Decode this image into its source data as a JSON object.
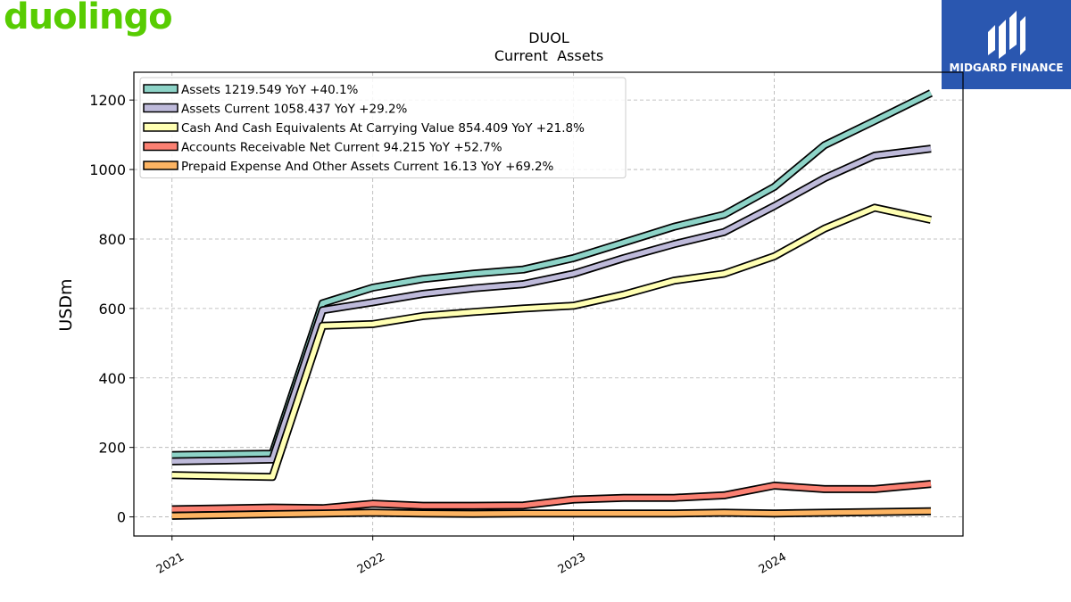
{
  "brand": {
    "logo_text": "duolingo",
    "partner_text": "MIDGARD FINANCE"
  },
  "chart_data": {
    "type": "line",
    "title": "DUOL",
    "subtitle": "Current  Assets",
    "ylabel": "USDm",
    "xlabel": "",
    "ylim": [
      -55,
      1280
    ],
    "xlim": [
      2020.81,
      2024.94
    ],
    "yticks": [
      0,
      200,
      400,
      600,
      800,
      1000,
      1200
    ],
    "xticks": [
      {
        "value": 2021,
        "label": "2021"
      },
      {
        "value": 2022,
        "label": "2022"
      },
      {
        "value": 2023,
        "label": "2023"
      },
      {
        "value": 2024,
        "label": "2024"
      }
    ],
    "grid": true,
    "legend_position": "top-left",
    "x": [
      2021.0,
      2021.5,
      2021.75,
      2022.0,
      2022.25,
      2022.5,
      2022.75,
      2023.0,
      2023.25,
      2023.5,
      2023.75,
      2024.0,
      2024.25,
      2024.5,
      2024.78
    ],
    "series": [
      {
        "label": "Assets  1219.549 YoY +40.1%",
        "color": "#8dd3c7",
        "values": [
          178,
          182,
          615,
          660,
          685,
          700,
          712,
          745,
          790,
          835,
          870,
          950,
          1070,
          1140,
          1220
        ]
      },
      {
        "label": "Assets Current  1058.437 YoY +29.2%",
        "color": "#bebada",
        "values": [
          160,
          165,
          595,
          618,
          642,
          658,
          670,
          700,
          745,
          785,
          820,
          895,
          975,
          1040,
          1060
        ]
      },
      {
        "label": "Cash And Cash Equivalents At Carrying Value  854.409 YoY +21.8%",
        "color": "#ffffb3",
        "values": [
          120,
          115,
          550,
          555,
          578,
          590,
          600,
          608,
          640,
          680,
          700,
          750,
          830,
          890,
          855
        ]
      },
      {
        "label": "Accounts Receivable Net Current  94.215 YoY +52.7%",
        "color": "#fb8072",
        "values": [
          22,
          27,
          25,
          38,
          32,
          32,
          33,
          50,
          55,
          55,
          62,
          90,
          80,
          80,
          95
        ]
      },
      {
        "label": "Prepaid Expense And Other Assets Current  16.13 YoY +69.2%",
        "color": "#fdb462",
        "values": [
          3,
          8,
          10,
          12,
          10,
          9,
          10,
          10,
          10,
          10,
          12,
          10,
          12,
          14,
          16
        ]
      }
    ]
  }
}
